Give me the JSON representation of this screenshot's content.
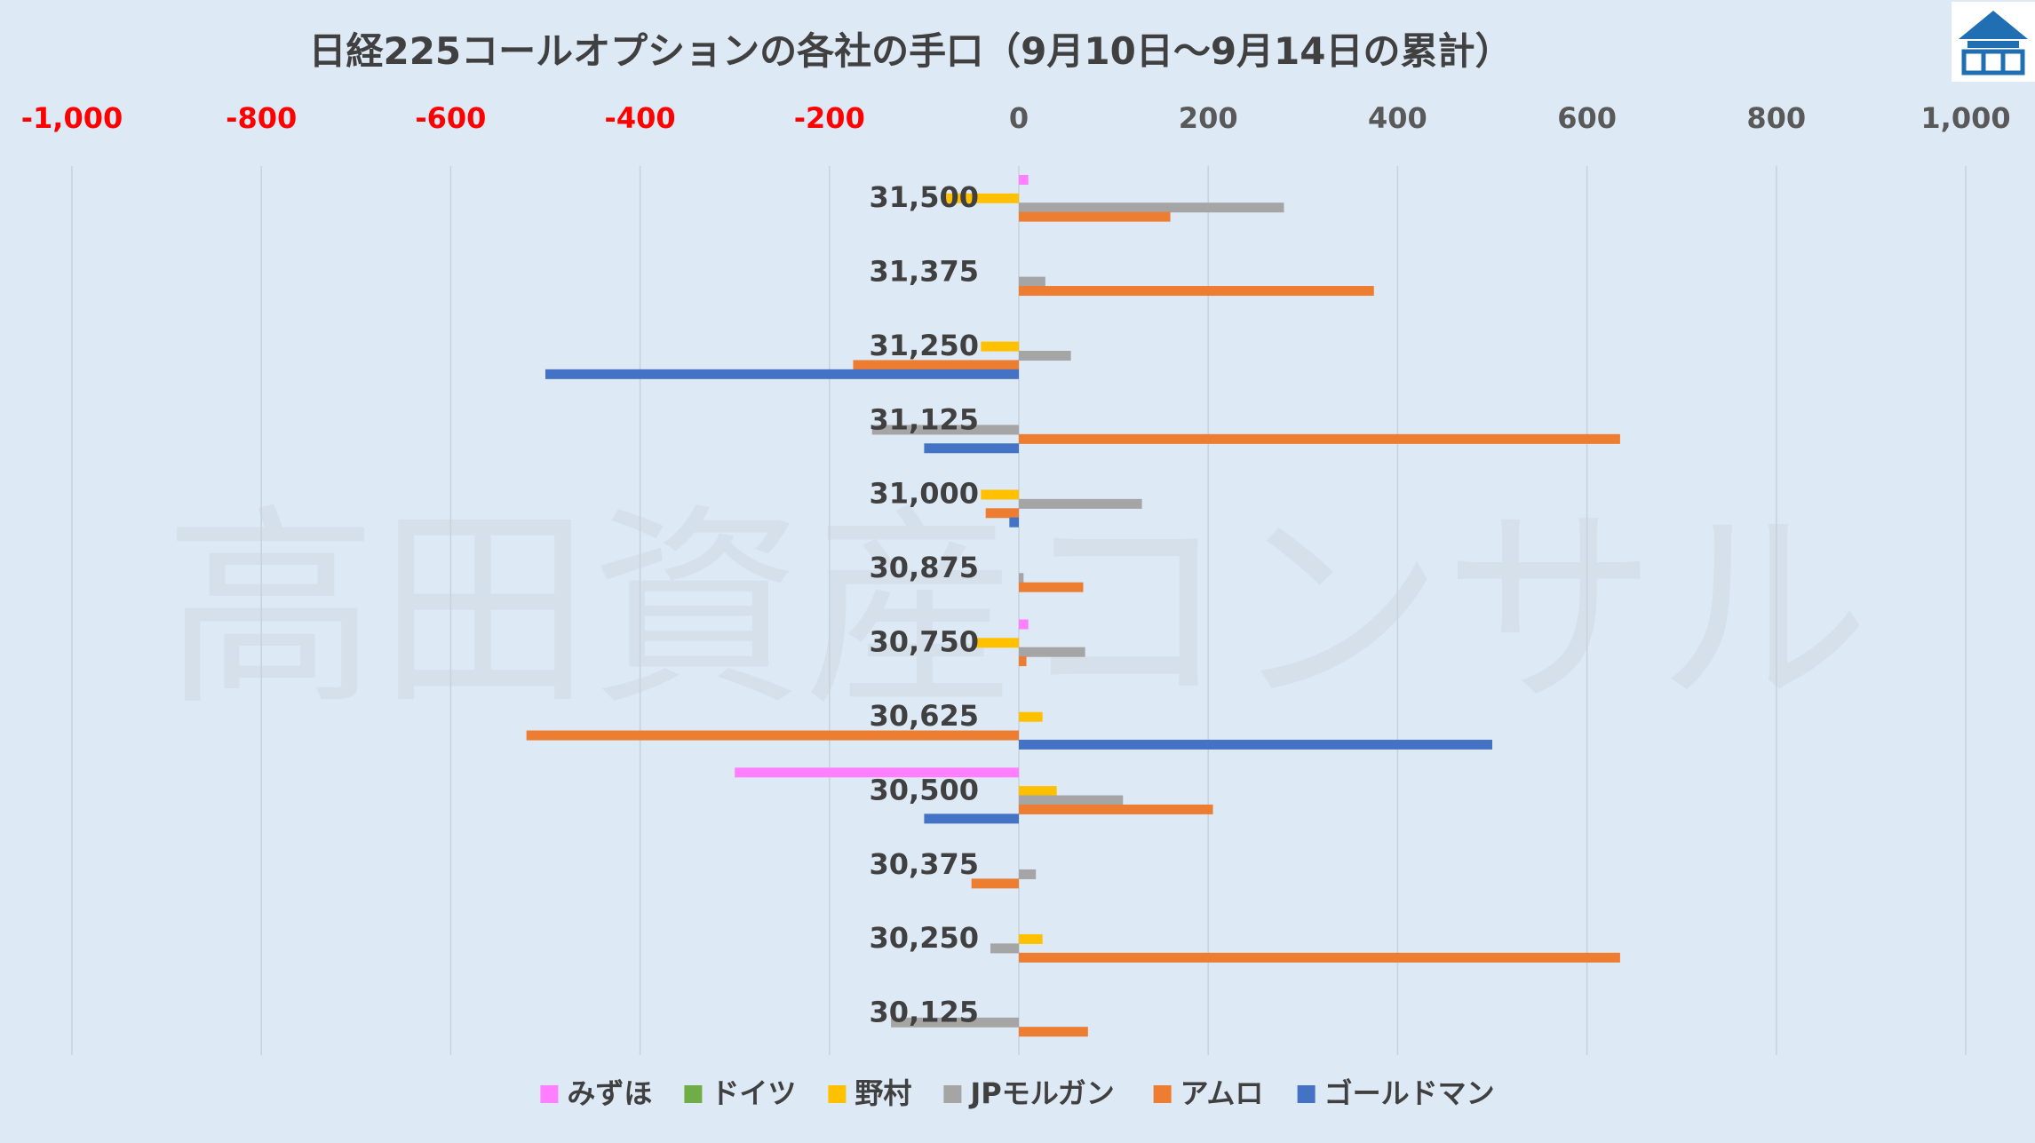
{
  "chart_data": {
    "type": "bar",
    "orientation": "horizontal",
    "title": "日経225コールオプションの各社の手口（9月10日～9月14日の累計）",
    "xlim": [
      -1000,
      1000
    ],
    "x_ticks": [
      -1000,
      -800,
      -600,
      -400,
      -200,
      0,
      200,
      400,
      600,
      800,
      1000
    ],
    "x_tick_labels": [
      "-1,000",
      "-800",
      "-600",
      "-400",
      "-200",
      "0",
      "200",
      "400",
      "600",
      "800",
      "1,000"
    ],
    "negative_tick_color": "#ff0000",
    "positive_tick_color": "#595959",
    "grid": "vertical",
    "legend_position": "bottom",
    "categories": [
      "31,500",
      "31,375",
      "31,250",
      "31,125",
      "31,000",
      "30,875",
      "30,750",
      "30,625",
      "30,500",
      "30,375",
      "30,250",
      "30,125"
    ],
    "series": [
      {
        "name": "みずほ",
        "color": "#ff80ff",
        "values": [
          10,
          0,
          0,
          0,
          0,
          0,
          10,
          0,
          -300,
          0,
          0,
          0
        ]
      },
      {
        "name": "ドイツ",
        "color": "#70ad47",
        "values": [
          0,
          0,
          0,
          0,
          0,
          0,
          0,
          0,
          0,
          0,
          0,
          0
        ]
      },
      {
        "name": "野村",
        "color": "#ffc000",
        "values": [
          -80,
          0,
          -40,
          0,
          -40,
          0,
          -45,
          25,
          40,
          0,
          25,
          0
        ]
      },
      {
        "name": "JPモルガン",
        "color": "#a5a5a5",
        "values": [
          280,
          28,
          55,
          -155,
          130,
          5,
          70,
          0,
          110,
          18,
          -30,
          -135
        ]
      },
      {
        "name": "アムロ",
        "color": "#ed7d31",
        "values": [
          160,
          375,
          -175,
          635,
          -35,
          68,
          8,
          -520,
          205,
          -50,
          635,
          73
        ]
      },
      {
        "name": "ゴールドマン",
        "color": "#4472c4",
        "values": [
          0,
          0,
          -500,
          -100,
          -10,
          0,
          0,
          500,
          -100,
          0,
          0,
          0
        ]
      }
    ]
  },
  "watermark": "高田資産コンサル",
  "logo_icon": "house-logo-icon"
}
